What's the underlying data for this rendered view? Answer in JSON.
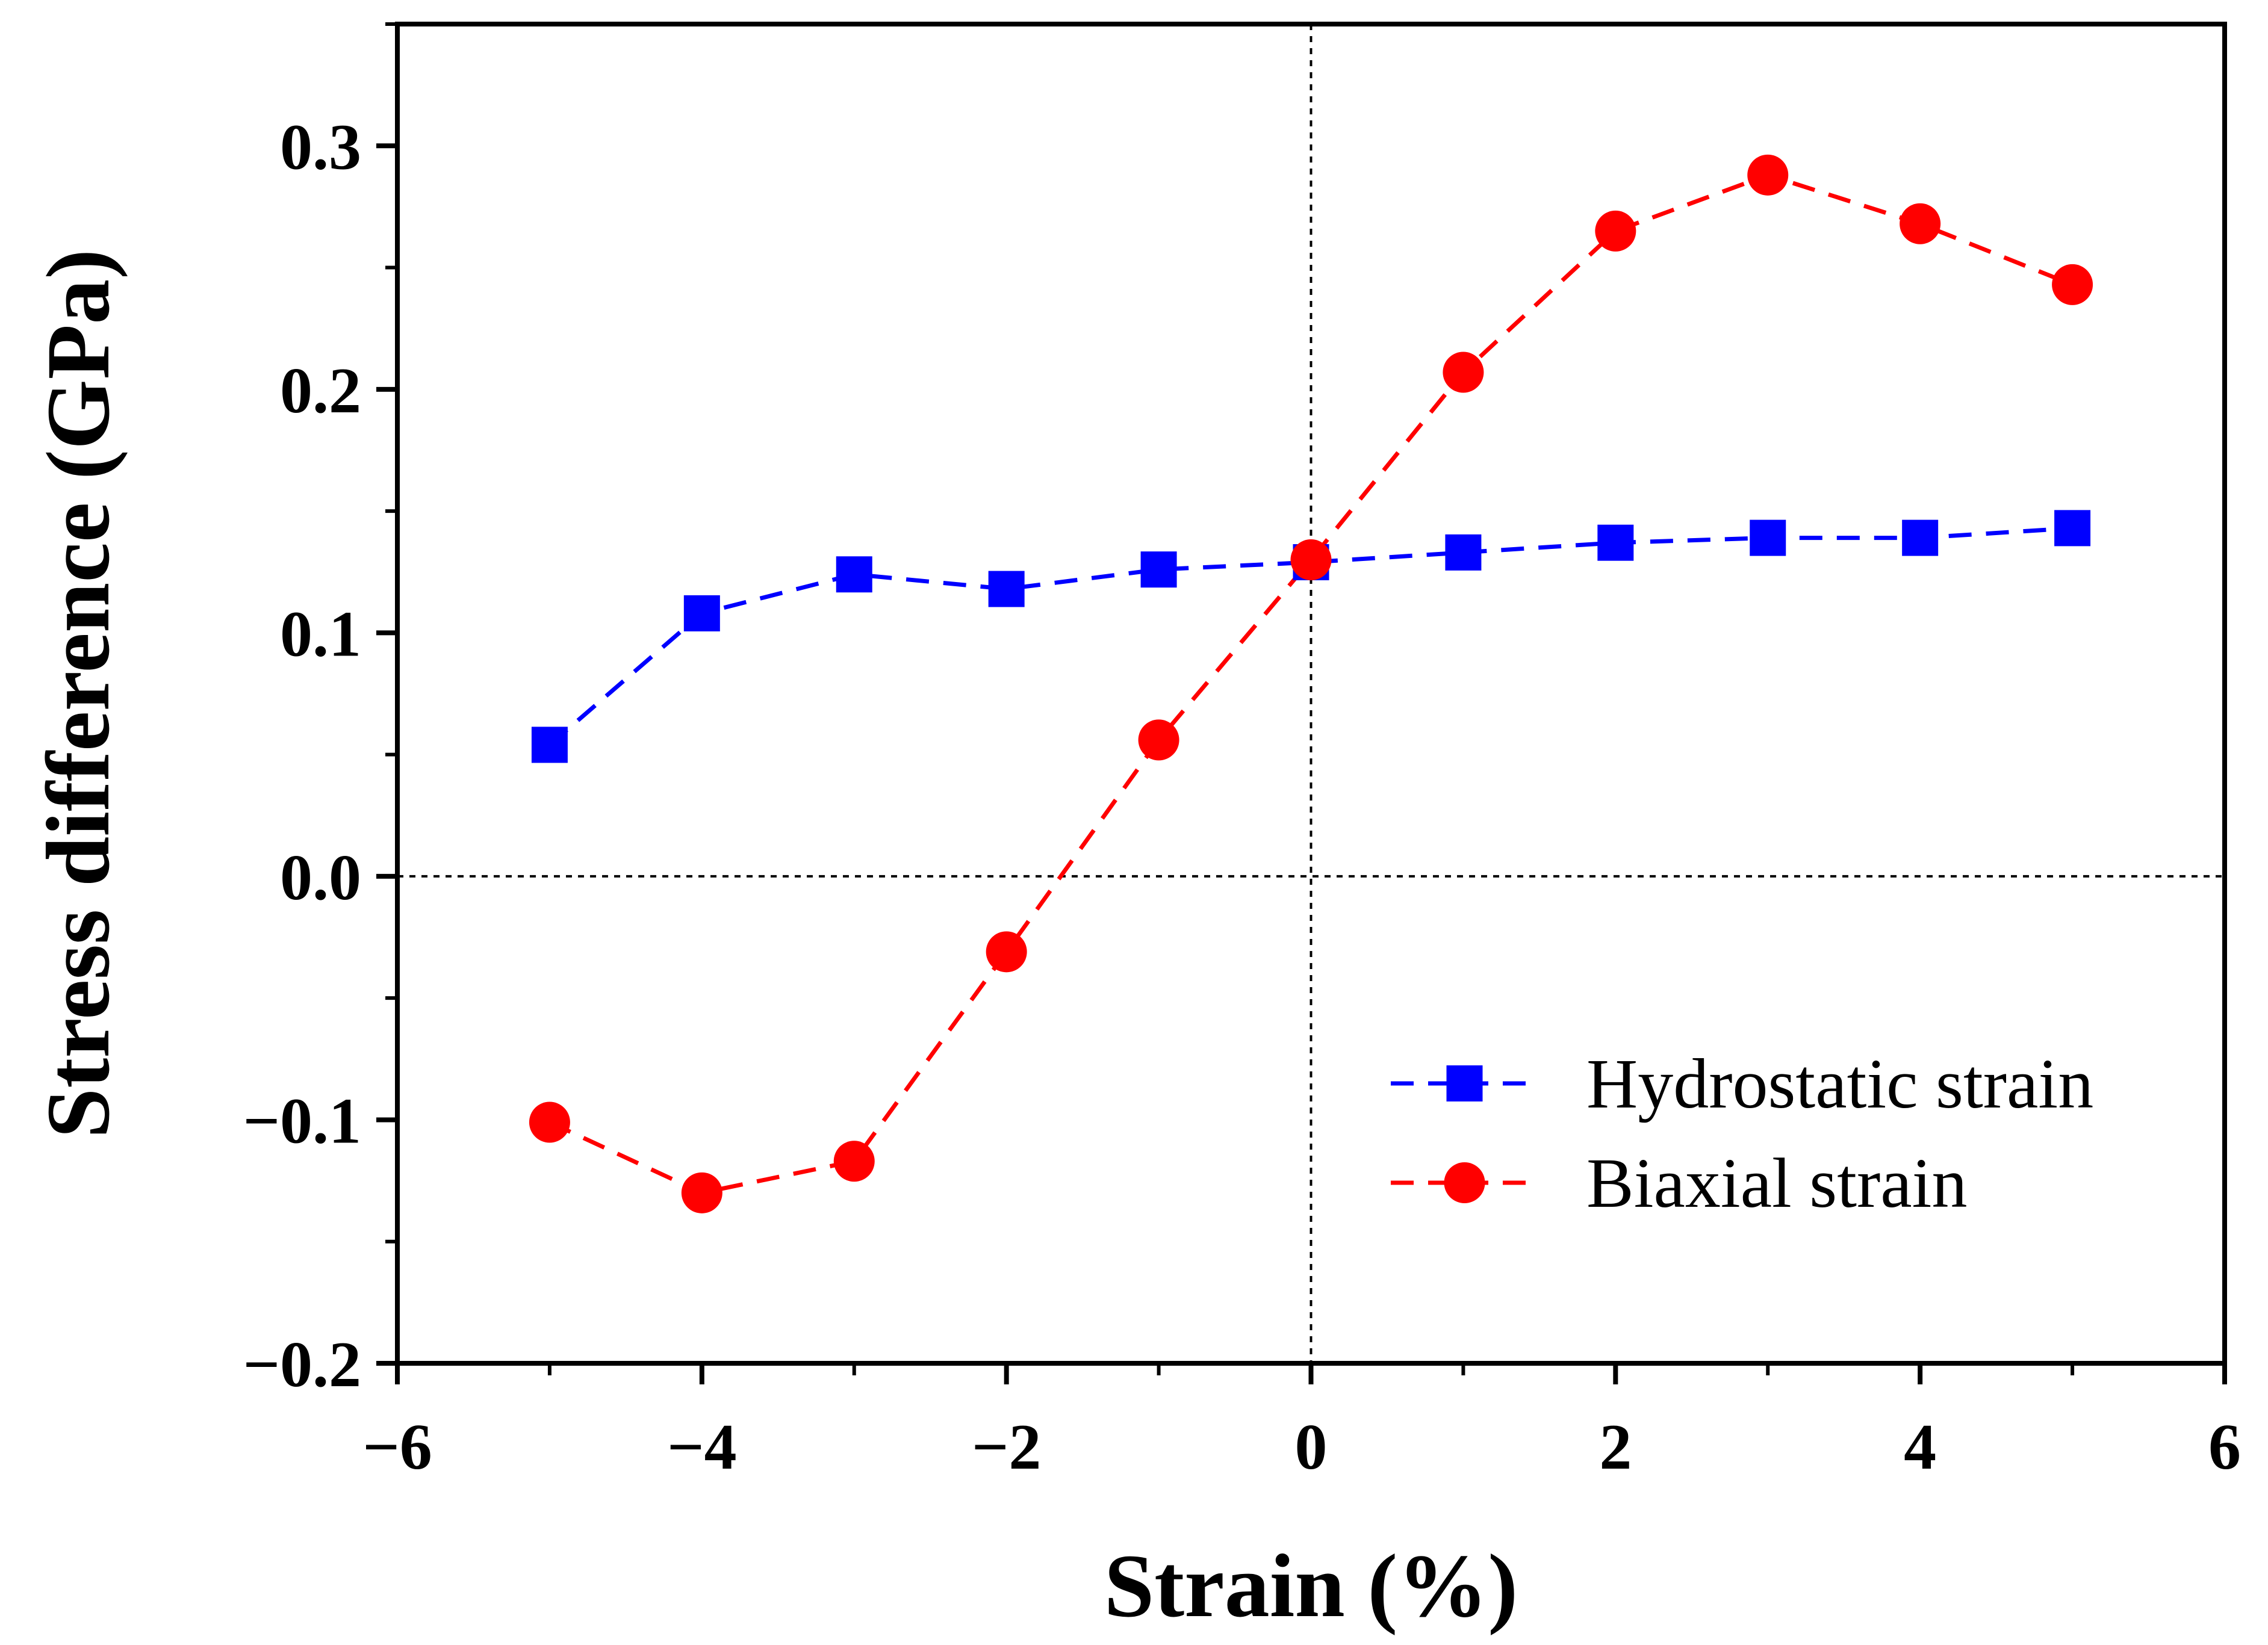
{
  "chart_data": {
    "type": "line",
    "title": "",
    "xlabel": "Strain (%)",
    "ylabel": "Stress difference (GPa)",
    "xlim": [
      -6,
      6
    ],
    "ylim": [
      -0.2,
      0.35
    ],
    "x_ticks": [
      -6,
      -4,
      -2,
      0,
      2,
      4,
      6
    ],
    "x_tick_labels": [
      "−6",
      "−4",
      "−2",
      "0",
      "2",
      "4",
      "6"
    ],
    "y_ticks": [
      -0.2,
      -0.1,
      0.0,
      0.1,
      0.2,
      0.3
    ],
    "y_tick_labels": [
      "−0.2",
      "−0.1",
      "0.0",
      "0.1",
      "0.2",
      "0.3"
    ],
    "reference_lines": {
      "x": 0,
      "y": 0
    },
    "grid": false,
    "legend_position": "bottom-right",
    "series": [
      {
        "name": "Hydrostatic strain",
        "marker": "square",
        "color": "#0000ff",
        "x": [
          -5,
          -4,
          -3,
          -2,
          -1,
          0,
          1,
          2,
          3,
          4,
          5
        ],
        "values": [
          0.054,
          0.108,
          0.124,
          0.118,
          0.126,
          0.129,
          0.133,
          0.137,
          0.139,
          0.139,
          0.143
        ]
      },
      {
        "name": "Biaxial strain",
        "marker": "circle",
        "color": "#ff0000",
        "x": [
          -5,
          -4,
          -3,
          -2,
          -1,
          0,
          1,
          2,
          3,
          4,
          5
        ],
        "values": [
          -0.101,
          -0.13,
          -0.117,
          -0.031,
          0.056,
          0.13,
          0.207,
          0.265,
          0.288,
          0.268,
          0.243
        ]
      }
    ]
  }
}
